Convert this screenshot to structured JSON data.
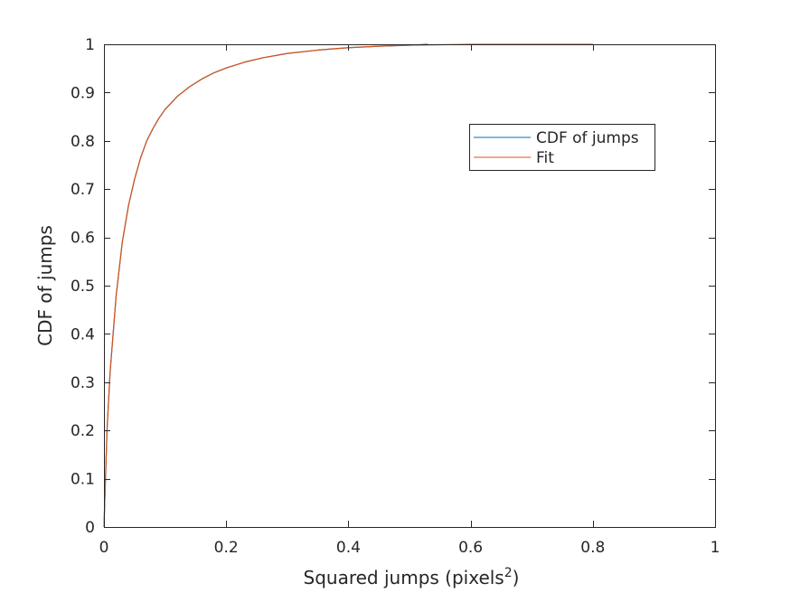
{
  "chart_data": {
    "type": "line",
    "title": "",
    "xlabel": "Squared jumps (pixels",
    "xlabel_superscript": "2",
    "xlabel_suffix": ")",
    "ylabel": "CDF of jumps",
    "xlim": [
      0,
      1
    ],
    "ylim": [
      0,
      1
    ],
    "xticks": [
      0,
      0.2,
      0.4,
      0.6,
      0.8,
      1
    ],
    "xtick_labels": [
      "0",
      "0.2",
      "0.4",
      "0.6",
      "0.8",
      "1"
    ],
    "yticks": [
      0,
      0.1,
      0.2,
      0.3,
      0.4,
      0.5,
      0.6,
      0.7,
      0.8,
      0.9,
      1
    ],
    "ytick_labels": [
      "0",
      "0.1",
      "0.2",
      "0.3",
      "0.4",
      "0.5",
      "0.6",
      "0.7",
      "0.8",
      "0.9",
      "1"
    ],
    "grid": false,
    "legend_position": "upper-right-inside",
    "series": [
      {
        "name": "CDF of jumps",
        "color": "#0072BD",
        "x": [
          0,
          0.005,
          0.01,
          0.02,
          0.03,
          0.04,
          0.05,
          0.06,
          0.07,
          0.08,
          0.09,
          0.1,
          0.12,
          0.14,
          0.16,
          0.18,
          0.2,
          0.23,
          0.26,
          0.3,
          0.35,
          0.4,
          0.45,
          0.5,
          0.53
        ],
        "y": [
          0,
          0.2,
          0.32,
          0.48,
          0.59,
          0.665,
          0.72,
          0.765,
          0.8,
          0.825,
          0.847,
          0.865,
          0.892,
          0.912,
          0.928,
          0.941,
          0.951,
          0.963,
          0.972,
          0.981,
          0.988,
          0.993,
          0.996,
          0.998,
          1.0
        ]
      },
      {
        "name": "Fit",
        "color": "#D95319",
        "x": [
          0,
          0.005,
          0.01,
          0.02,
          0.03,
          0.04,
          0.05,
          0.06,
          0.07,
          0.08,
          0.09,
          0.1,
          0.12,
          0.14,
          0.16,
          0.18,
          0.2,
          0.23,
          0.26,
          0.3,
          0.35,
          0.4,
          0.45,
          0.5,
          0.55,
          0.6,
          0.7,
          0.8
        ],
        "y": [
          0,
          0.2,
          0.32,
          0.48,
          0.59,
          0.665,
          0.72,
          0.765,
          0.8,
          0.825,
          0.847,
          0.865,
          0.892,
          0.912,
          0.928,
          0.941,
          0.951,
          0.963,
          0.972,
          0.981,
          0.988,
          0.993,
          0.996,
          0.998,
          0.999,
          1.0,
          1.0,
          1.0
        ]
      }
    ]
  }
}
